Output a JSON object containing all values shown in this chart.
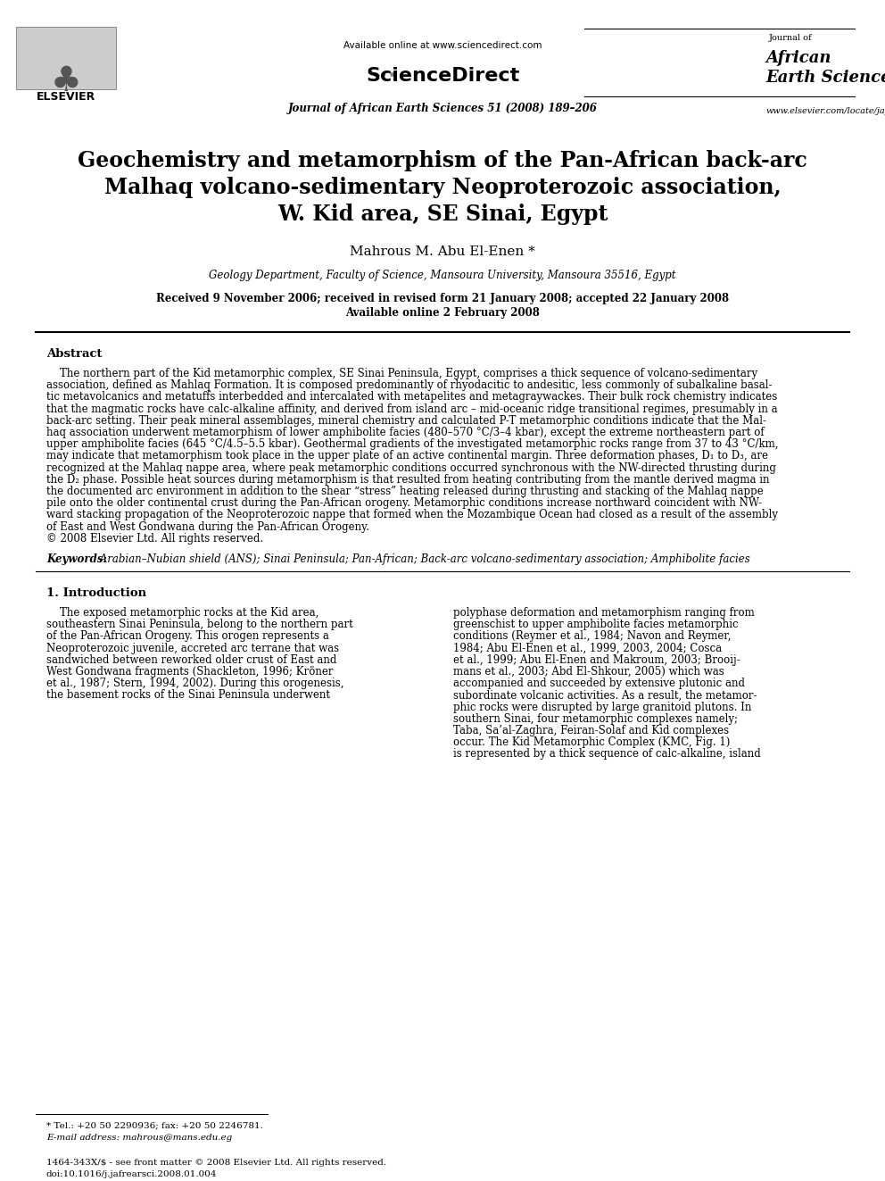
{
  "bg_color": "#ffffff",
  "header_online": "Available online at www.sciencedirect.com",
  "header_journal_center": "Journal of African Earth Sciences 51 (2008) 189–206",
  "header_journal_right1": "Journal of",
  "header_journal_right2": "African",
  "header_journal_right3": "Earth Sciences",
  "header_website": "www.elsevier.com/locate/jafrearsci",
  "header_elsevier": "ELSEVIER",
  "title_line1": "Geochemistry and metamorphism of the Pan-African back-arc",
  "title_line2": "Malhaq volcano-sedimentary Neoproterozoic association,",
  "title_line3": "W. Kid area, SE Sinai, Egypt",
  "author": "Mahrous M. Abu El-Enen *",
  "affiliation": "Geology Department, Faculty of Science, Mansoura University, Mansoura 35516, Egypt",
  "received": "Received 9 November 2006; received in revised form 21 January 2008; accepted 22 January 2008",
  "available": "Available online 2 February 2008",
  "abstract_title": "Abstract",
  "abstract_lines": [
    "    The northern part of the Kid metamorphic complex, SE Sinai Peninsula, Egypt, comprises a thick sequence of volcano-sedimentary",
    "association, defined as Mahlaq Formation. It is composed predominantly of rhyodacitic to andesitic, less commonly of subalkaline basal-",
    "tic metavolcanics and metatuffs interbedded and intercalated with metapelites and metagraywackes. Their bulk rock chemistry indicates",
    "that the magmatic rocks have calc-alkaline affinity, and derived from island arc – mid-oceanic ridge transitional regimes, presumably in a",
    "back-arc setting. Their peak mineral assemblages, mineral chemistry and calculated P-T metamorphic conditions indicate that the Mal-",
    "haq association underwent metamorphism of lower amphibolite facies (480–570 °C/3–4 kbar), except the extreme northeastern part of",
    "upper amphibolite facies (645 °C/4.5–5.5 kbar). Geothermal gradients of the investigated metamorphic rocks range from 37 to 43 °C/km,",
    "may indicate that metamorphism took place in the upper plate of an active continental margin. Three deformation phases, D₁ to D₃, are",
    "recognized at the Mahlaq nappe area, where peak metamorphic conditions occurred synchronous with the NW-directed thrusting during",
    "the D₂ phase. Possible heat sources during metamorphism is that resulted from heating contributing from the mantle derived magma in",
    "the documented arc environment in addition to the shear “stress” heating released during thrusting and stacking of the Mahlaq nappe",
    "pile onto the older continental crust during the Pan-African orogeny. Metamorphic conditions increase northward coincident with NW-",
    "ward stacking propagation of the Neoproterozoic nappe that formed when the Mozambique Ocean had closed as a result of the assembly",
    "of East and West Gondwana during the Pan-African Orogeny.",
    "© 2008 Elsevier Ltd. All rights reserved."
  ],
  "keywords_label": "Keywords:",
  "keywords_text": " Arabian–Nubian shield (ANS); Sinai Peninsula; Pan-African; Back-arc volcano-sedimentary association; Amphibolite facies",
  "section1_title": "1. Introduction",
  "col1_lines": [
    "    The exposed metamorphic rocks at the Kid area,",
    "southeastern Sinai Peninsula, belong to the northern part",
    "of the Pan-African Orogeny. This orogen represents a",
    "Neoproterozoic juvenile, accreted arc terrane that was",
    "sandwiched between reworked older crust of East and",
    "West Gondwana fragments (Shackleton, 1996; Kröner",
    "et al., 1987; Stern, 1994, 2002). During this orogenesis,",
    "the basement rocks of the Sinai Peninsula underwent"
  ],
  "col2_lines": [
    "polyphase deformation and metamorphism ranging from",
    "greenschist to upper amphibolite facies metamorphic",
    "conditions (Reymer et al., 1984; Navon and Reymer,",
    "1984; Abu El-Enen et al., 1999, 2003, 2004; Cosca",
    "et al., 1999; Abu El-Enen and Makroum, 2003; Brooij-",
    "mans et al., 2003; Abd El-Shkour, 2005) which was",
    "accompanied and succeeded by extensive plutonic and",
    "subordinate volcanic activities. As a result, the metamor-",
    "phic rocks were disrupted by large granitoid plutons. In",
    "southern Sinai, four metamorphic complexes namely;",
    "Taba, Sa’al-Zaghra, Feiran-Solaf and Kid complexes",
    "occur. The Kid Metamorphic Complex (KMC, Fig. 1)",
    "is represented by a thick sequence of calc-alkaline, island"
  ],
  "footnote_line": "* Tel.: +20 50 2290936; fax: +20 50 2246781.",
  "footnote_email": "E-mail address: mahrous@mans.edu.eg",
  "footer_issn": "1464-343X/$ - see front matter © 2008 Elsevier Ltd. All rights reserved.",
  "footer_doi": "doi:10.1016/j.jafrearsci.2008.01.004"
}
